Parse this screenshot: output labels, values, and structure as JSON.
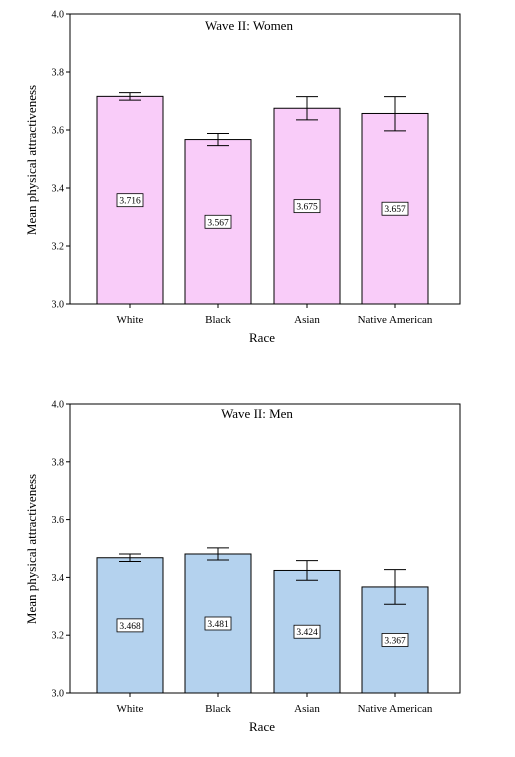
{
  "chart_data": [
    {
      "type": "bar",
      "title": "Wave II:  Women",
      "xlabel": "Race",
      "ylabel": "Mean physical attractiveness",
      "categories": [
        "White",
        "Black",
        "Asian",
        "Native American"
      ],
      "values": [
        3.716,
        3.567,
        3.675,
        3.657
      ],
      "data_labels": [
        "3.716",
        "3.567",
        "3.675",
        "3.657"
      ],
      "error_low": [
        3.703,
        3.546,
        3.635,
        3.597
      ],
      "error_high": [
        3.729,
        3.588,
        3.715,
        3.715
      ],
      "ylim": [
        3.0,
        4.0
      ],
      "yticks": [
        "3.0",
        "3.2",
        "3.4",
        "3.6",
        "3.8",
        "4.0"
      ],
      "bar_color": "#f9ccf9",
      "grid": false
    },
    {
      "type": "bar",
      "title": "Wave II:  Men",
      "xlabel": "Race",
      "ylabel": "Mean physical attractiveness",
      "categories": [
        "White",
        "Black",
        "Asian",
        "Native American"
      ],
      "values": [
        3.468,
        3.481,
        3.424,
        3.367
      ],
      "data_labels": [
        "3.468",
        "3.481",
        "3.424",
        "3.367"
      ],
      "error_low": [
        3.455,
        3.46,
        3.39,
        3.307
      ],
      "error_high": [
        3.481,
        3.502,
        3.458,
        3.427
      ],
      "ylim": [
        3.0,
        4.0
      ],
      "yticks": [
        "3.0",
        "3.2",
        "3.4",
        "3.6",
        "3.8",
        "4.0"
      ],
      "bar_color": "#b4d2ee",
      "grid": false
    }
  ]
}
